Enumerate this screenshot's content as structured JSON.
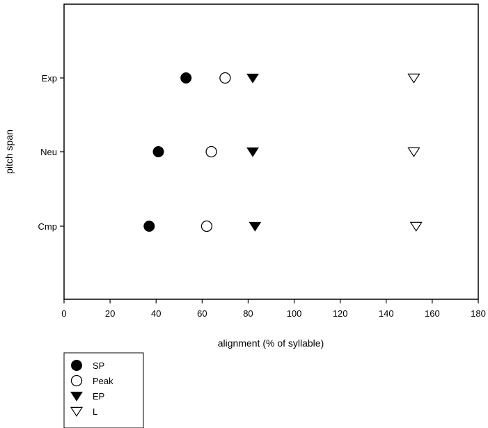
{
  "chart_data": {
    "type": "scatter",
    "xlabel": "alignment (% of syllable)",
    "ylabel": "pitch span",
    "xlim": [
      0,
      180
    ],
    "xticks": [
      0,
      20,
      40,
      60,
      80,
      100,
      120,
      140,
      160,
      180
    ],
    "xtick_labels": [
      "0",
      "20",
      "40",
      "60",
      "80",
      "100",
      "120",
      "140",
      "160",
      "180"
    ],
    "categories": [
      "Exp",
      "Neu",
      "Cmp"
    ],
    "grid": false,
    "legend_position": "bottom-left, below plot",
    "series": [
      {
        "name": "SP",
        "marker": "filled-circle",
        "values": [
          53,
          41,
          37
        ]
      },
      {
        "name": "Peak",
        "marker": "open-circle",
        "values": [
          70,
          64,
          62
        ]
      },
      {
        "name": "EP",
        "marker": "filled-triangle-down",
        "values": [
          82,
          82,
          83
        ]
      },
      {
        "name": "L",
        "marker": "open-triangle-down",
        "values": [
          152,
          152,
          153
        ]
      }
    ]
  }
}
